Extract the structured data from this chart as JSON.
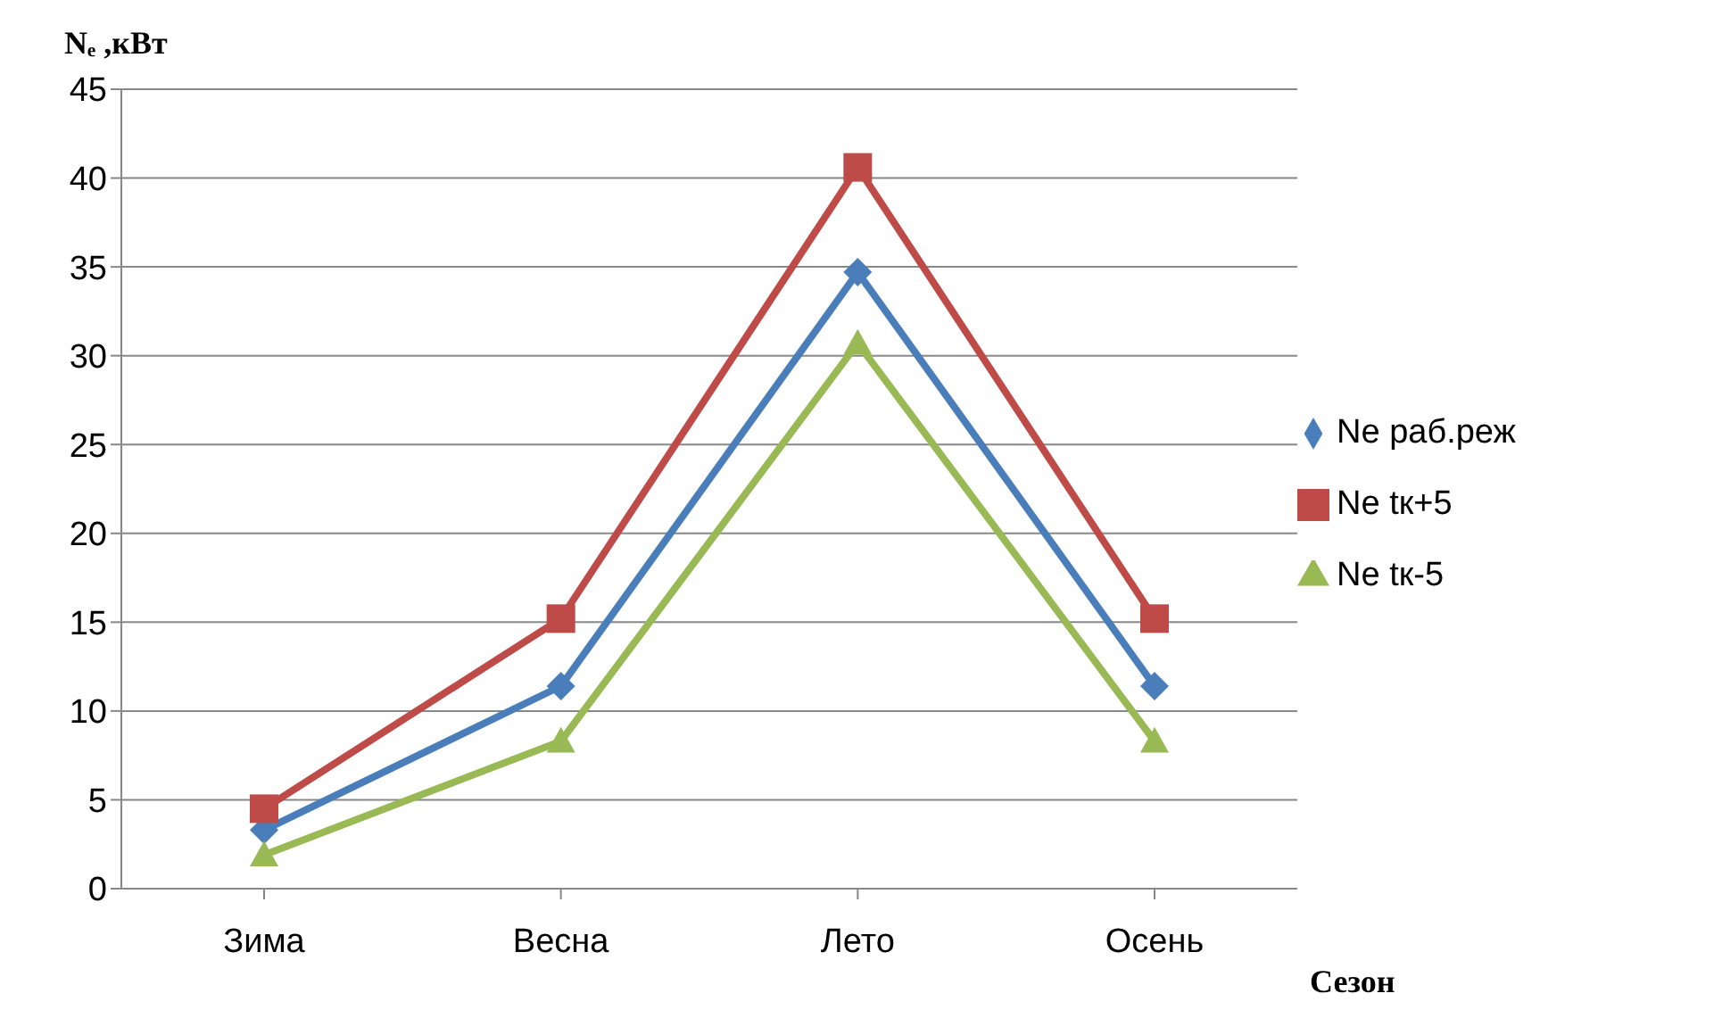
{
  "chart_data": {
    "type": "line",
    "ylabel": "Nₑ ,кВт",
    "xlabel": "Сезон",
    "categories": [
      "Зима",
      "Весна",
      "Лето",
      "Осень"
    ],
    "series": [
      {
        "name": "Ne раб.реж",
        "color": "#4a7ebb",
        "marker": "diamond",
        "values": [
          3.3,
          11.4,
          34.7,
          11.4
        ]
      },
      {
        "name": "Ne tк+5",
        "color": "#be4b48",
        "marker": "square",
        "values": [
          4.5,
          15.2,
          40.6,
          15.2
        ]
      },
      {
        "name": "Ne tк-5",
        "color": "#98b954",
        "marker": "triangle",
        "values": [
          1.9,
          8.3,
          30.7,
          8.3
        ]
      }
    ],
    "ylim": [
      0,
      45
    ],
    "yticks": [
      0,
      5,
      10,
      15,
      20,
      25,
      30,
      35,
      40,
      45
    ],
    "grid": "y",
    "legend": "right",
    "line_style": "solid"
  }
}
